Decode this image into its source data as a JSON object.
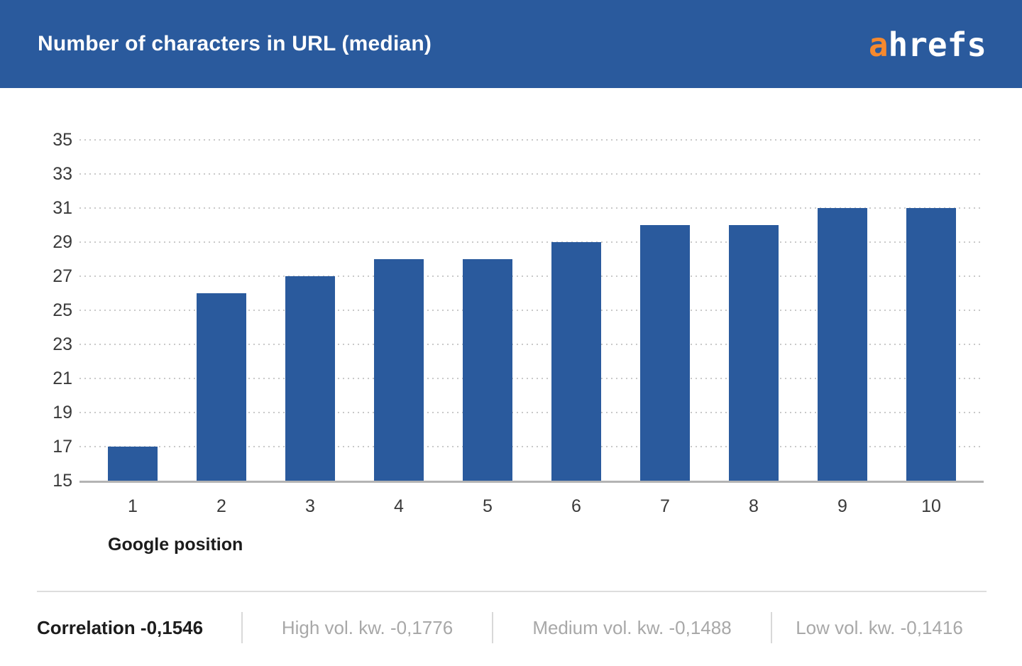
{
  "header": {
    "title": "Number of characters in URL (median)",
    "logo": {
      "accent_part": "a",
      "rest_part": "hrefs"
    }
  },
  "chart_data": {
    "type": "bar",
    "title": "Number of characters in URL (median)",
    "categories": [
      "1",
      "2",
      "3",
      "4",
      "5",
      "6",
      "7",
      "8",
      "9",
      "10"
    ],
    "values": [
      17,
      26,
      27,
      28,
      28,
      29,
      30,
      30,
      31,
      31
    ],
    "xlabel": "Google position",
    "ylabel": "",
    "ylim": [
      15,
      35
    ],
    "y_ticks": [
      15,
      17,
      19,
      21,
      23,
      25,
      27,
      29,
      31,
      33,
      35
    ],
    "grid": "horizontal-dotted",
    "legend": "none",
    "bar_color": "#2A5A9D"
  },
  "footer": {
    "segments": [
      {
        "label": "Correlation -0,1546",
        "emphasis": true
      },
      {
        "label": "High vol. kw. -0,1776",
        "emphasis": false
      },
      {
        "label": "Medium vol. kw. -0,1488",
        "emphasis": false
      },
      {
        "label": "Low vol. kw. -0,1416",
        "emphasis": false
      }
    ]
  },
  "colors": {
    "header_bg": "#2A5A9D",
    "bar": "#2A5A9D",
    "logo_accent": "#F6892E",
    "grid": "#C9C9C9",
    "baseline": "#B3B3B3",
    "axis_text": "#3A3A3A",
    "strong_text": "#1C1C1C",
    "muted_text": "#A8A8A8",
    "divider": "#DDDDDD"
  }
}
